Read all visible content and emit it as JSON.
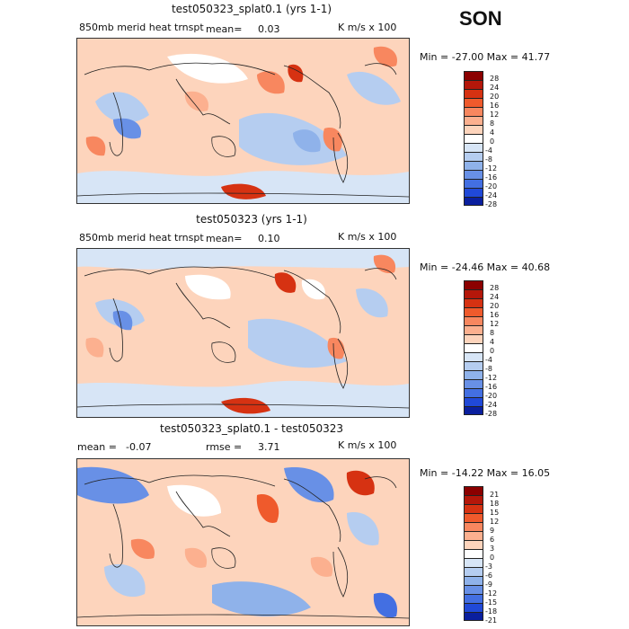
{
  "season": "SON",
  "palette": {
    "p28": "#8b0000",
    "p24": "#b4170a",
    "p20": "#d63212",
    "p16": "#ef5a2c",
    "p12": "#f8875f",
    "p8": "#fcb08f",
    "p4": "#fdd4bc",
    "p0": "#ffffff",
    "n4": "#d7e5f6",
    "n8": "#b5cdf0",
    "n12": "#8fb2ea",
    "n16": "#6890e6",
    "n20": "#436fe2",
    "n24": "#2049d8",
    "n28": "#0a1f9e"
  },
  "panels": [
    {
      "title": "test050323_splat0.1 (yrs 1-1)",
      "variable": "850mb merid heat trnspt",
      "stat_label": "mean=",
      "stat_value": "0.03",
      "units": "K m/s x 100",
      "min_max": "Min = -27.00 Max =  41.77",
      "colorbar_labels": [
        "28",
        "24",
        "20",
        "16",
        "12",
        "8",
        "4",
        "0",
        "-4",
        "-8",
        "-12",
        "-16",
        "-20",
        "-24",
        "-28"
      ]
    },
    {
      "title": "test050323 (yrs 1-1)",
      "variable": "850mb merid heat trnspt",
      "stat_label": "mean=",
      "stat_value": "0.10",
      "units": "K m/s x 100",
      "min_max": "Min = -24.46 Max =  40.68",
      "colorbar_labels": [
        "28",
        "24",
        "20",
        "16",
        "12",
        "8",
        "4",
        "0",
        "-4",
        "-8",
        "-12",
        "-16",
        "-20",
        "-24",
        "-28"
      ]
    },
    {
      "title": "test050323_splat0.1 - test050323",
      "mean_label": "mean =",
      "mean_value": "-0.07",
      "rmse_label": "rmse =",
      "rmse_value": "3.71",
      "units": "K m/s x 100",
      "min_max": "Min = -14.22 Max =  16.05",
      "colorbar_labels": [
        "21",
        "18",
        "15",
        "12",
        "9",
        "6",
        "3",
        "0",
        "-3",
        "-6",
        "-9",
        "-12",
        "-15",
        "-18",
        "-21"
      ]
    }
  ]
}
